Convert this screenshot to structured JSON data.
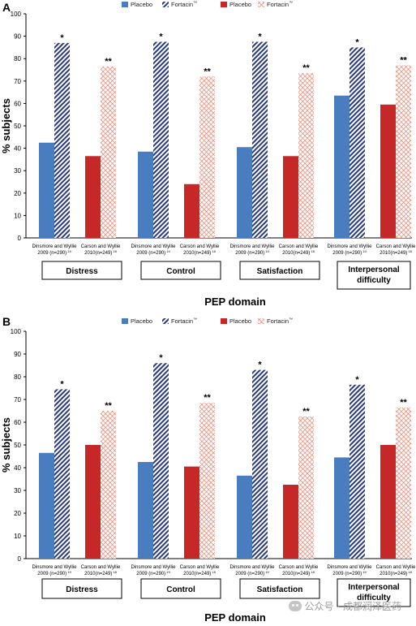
{
  "colors": {
    "placebo_blue": "#4a7dbf",
    "fortacin_blue": "#28397f",
    "placebo_red": "#c62828",
    "fortacin_red": "#e8705a"
  },
  "watermark": {
    "text": "公众号 · 成都润泽医药",
    "icon": "wechat-icon"
  },
  "chart_data": [
    {
      "type": "bar",
      "panel_label": "A",
      "ylabel": "% subjects",
      "xlabel": "PEP domain",
      "ylim": [
        0,
        100
      ],
      "yticks": [
        0,
        10,
        20,
        30,
        40,
        50,
        60,
        70,
        80,
        90,
        100
      ],
      "legend": {
        "placement": "top",
        "items": [
          {
            "label": "Placebo",
            "sup": "",
            "style": "solid-blue"
          },
          {
            "label": "Fortacin",
            "sup": "™",
            "style": "hatch-blue"
          },
          {
            "label": "Placebo",
            "sup": "",
            "style": "solid-red"
          },
          {
            "label": "Fortacin",
            "sup": "™",
            "style": "hatch-red"
          }
        ]
      },
      "groups": [
        {
          "label": [
            "Distress"
          ],
          "studies": [
            {
              "label": [
                "Dinsmore and Wyllie",
                "2009 (n=290)"
              ],
              "sup": "19",
              "color": "blue",
              "placebo": 42.5,
              "fortacin": 87,
              "sig": "*"
            },
            {
              "label": [
                "Carson and Wyllie",
                "2010(n=249)"
              ],
              "sup": "18",
              "color": "red",
              "placebo": 36.5,
              "fortacin": 76.5,
              "sig": "**"
            }
          ]
        },
        {
          "label": [
            "Control"
          ],
          "studies": [
            {
              "label": [
                "Dinsmore and Wyllie",
                "2009 (n=290)"
              ],
              "sup": "19",
              "color": "blue",
              "placebo": 38.5,
              "fortacin": 87.5,
              "sig": "*"
            },
            {
              "label": [
                "Carson and Wyllie",
                "2010(n=249)"
              ],
              "sup": "18",
              "color": "red",
              "placebo": 24,
              "fortacin": 72,
              "sig": "**"
            }
          ]
        },
        {
          "label": [
            "Satisfaction"
          ],
          "studies": [
            {
              "label": [
                "Dinsmore and Wyllie",
                "2009 (n=290)"
              ],
              "sup": "19",
              "color": "blue",
              "placebo": 40.5,
              "fortacin": 87.5,
              "sig": "*"
            },
            {
              "label": [
                "Carson and Wyllie",
                "2010(n=249)"
              ],
              "sup": "18",
              "color": "red",
              "placebo": 36.5,
              "fortacin": 73.5,
              "sig": "**"
            }
          ]
        },
        {
          "label": [
            "Interpersonal",
            "difficulty"
          ],
          "studies": [
            {
              "label": [
                "Dinsmore and Wyllie",
                "2009 (n=290)"
              ],
              "sup": "19",
              "color": "blue",
              "placebo": 63.5,
              "fortacin": 85,
              "sig": "*"
            },
            {
              "label": [
                "Carson and Wyllie",
                "2010(n=249)"
              ],
              "sup": "18",
              "color": "red",
              "placebo": 59.5,
              "fortacin": 77,
              "sig": "**"
            }
          ]
        }
      ]
    },
    {
      "type": "bar",
      "panel_label": "B",
      "ylabel": "% subjects",
      "xlabel": "PEP domain",
      "ylim": [
        0,
        100
      ],
      "yticks": [
        0,
        10,
        20,
        30,
        40,
        50,
        60,
        70,
        80,
        90,
        100
      ],
      "legend": {
        "placement": "top",
        "items": [
          {
            "label": "Placebo",
            "sup": "",
            "style": "solid-blue"
          },
          {
            "label": "Fortacin",
            "sup": "™",
            "style": "hatch-blue"
          },
          {
            "label": "Placebo",
            "sup": "",
            "style": "solid-red"
          },
          {
            "label": "Fortacin",
            "sup": "™",
            "style": "hatch-red"
          }
        ]
      },
      "groups": [
        {
          "label": [
            "Distress"
          ],
          "studies": [
            {
              "label": [
                "Dinsmore and Wyllie",
                "2009 (n=290)"
              ],
              "sup": "19",
              "color": "blue",
              "placebo": 46.5,
              "fortacin": 74.5,
              "sig": "*"
            },
            {
              "label": [
                "Carson and Wyllie",
                "2010(n=249)"
              ],
              "sup": "18",
              "color": "red",
              "placebo": 50,
              "fortacin": 65,
              "sig": "**"
            }
          ]
        },
        {
          "label": [
            "Control"
          ],
          "studies": [
            {
              "label": [
                "Dinsmore and Wyllie",
                "2009 (n=290)"
              ],
              "sup": "19",
              "color": "blue",
              "placebo": 42.5,
              "fortacin": 86,
              "sig": "*"
            },
            {
              "label": [
                "Carson and Wyllie",
                "2010(n=249)"
              ],
              "sup": "18",
              "color": "red",
              "placebo": 40.5,
              "fortacin": 68.5,
              "sig": "**"
            }
          ]
        },
        {
          "label": [
            "Satisfaction"
          ],
          "studies": [
            {
              "label": [
                "Dinsmore and Wyllie",
                "2009 (n=290)"
              ],
              "sup": "19",
              "color": "blue",
              "placebo": 36.5,
              "fortacin": 83,
              "sig": "*"
            },
            {
              "label": [
                "Carson and Wyllie",
                "2010(n=249)"
              ],
              "sup": "18",
              "color": "red",
              "placebo": 32.5,
              "fortacin": 62.5,
              "sig": "**"
            }
          ]
        },
        {
          "label": [
            "Interpersonal",
            "difficulty"
          ],
          "studies": [
            {
              "label": [
                "Dinsmore and Wyllie",
                "2009 (n=290)"
              ],
              "sup": "19",
              "color": "blue",
              "placebo": 44.5,
              "fortacin": 76.5,
              "sig": "*"
            },
            {
              "label": [
                "Carson and Wyllie",
                "2010(n=249)"
              ],
              "sup": "18",
              "color": "red",
              "placebo": 50,
              "fortacin": 66.5,
              "sig": "**"
            }
          ]
        }
      ]
    }
  ]
}
